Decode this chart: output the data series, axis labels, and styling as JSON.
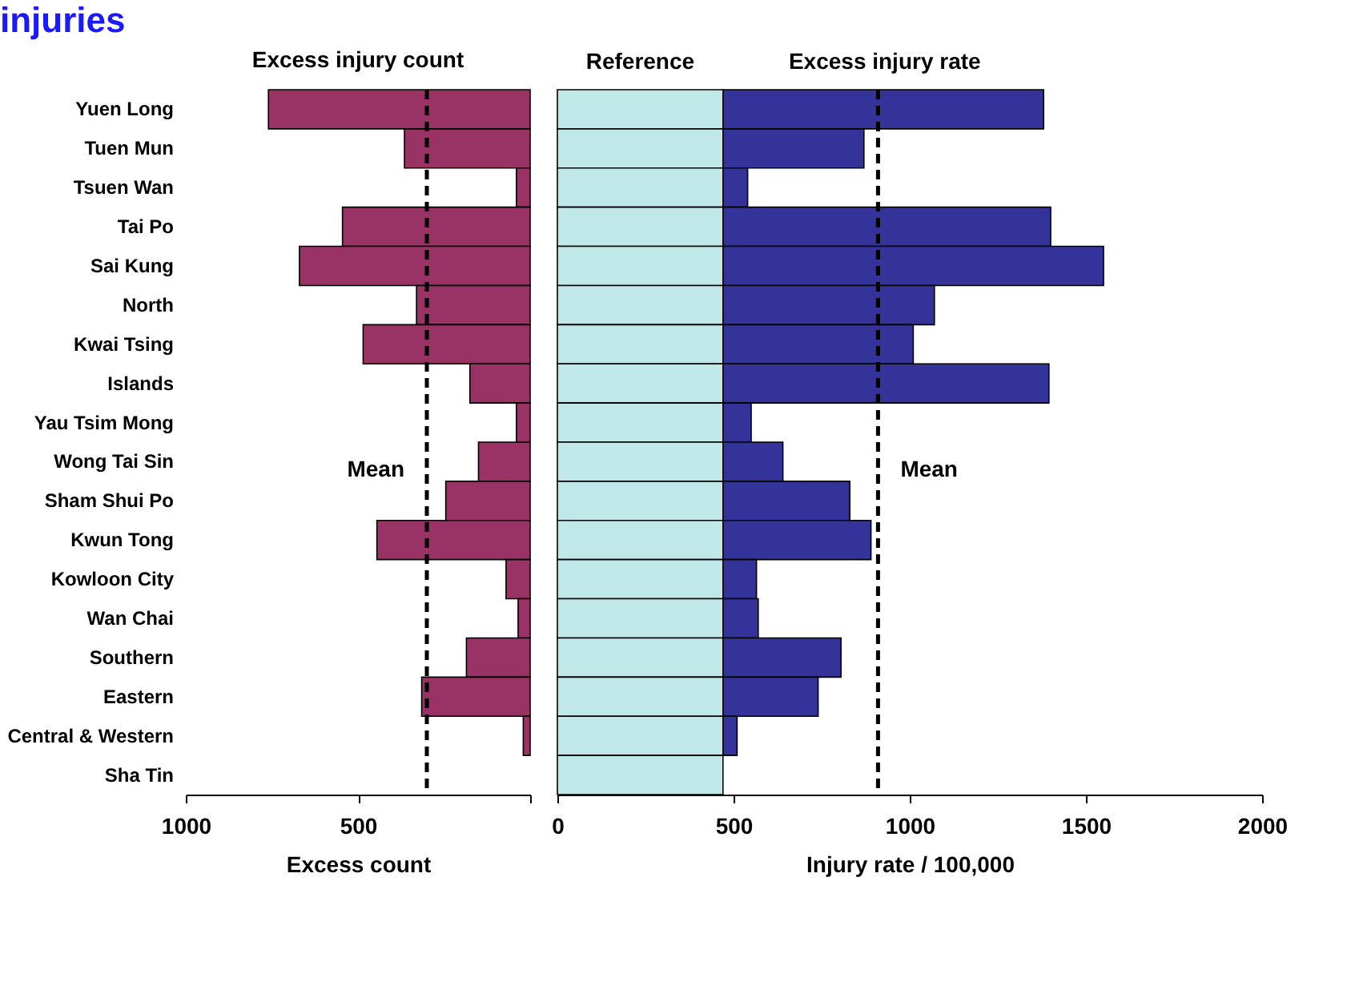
{
  "chart_data": [
    {
      "type": "bar",
      "orientation": "horizontal",
      "title": "Excess injury count",
      "xlabel": "Excess count",
      "annotations": [
        "injuries"
      ],
      "categories": [
        "Yuen Long",
        "Tuen Mun",
        "Tsuen Wan",
        "Tai Po",
        "Sai Kung",
        "North",
        "Kwai Tsing",
        "Islands",
        "Yau Tsim Mong",
        "Wong Tai Sin",
        "Sham Shui Po",
        "Kwun Tong",
        "Kowloon City",
        "Wan Chai",
        "Southern",
        "Eastern",
        "Central & Western",
        "Sha Tin"
      ],
      "values": [
        760,
        365,
        40,
        545,
        670,
        330,
        485,
        175,
        40,
        150,
        245,
        445,
        70,
        35,
        185,
        315,
        20,
        null
      ],
      "color": "#993366",
      "xlim": [
        1000,
        0
      ],
      "xticks": [
        1000,
        500,
        {
          "value": 0,
          "label": null
        }
      ],
      "ref_lines": [
        {
          "axis": "x",
          "value": 300,
          "label": "Mean",
          "line_style": "dashed"
        }
      ],
      "grid": false,
      "legend": false
    },
    {
      "type": "bar",
      "orientation": "horizontal",
      "stacked": true,
      "xlabel": "Injury rate / 100,000",
      "tick_labels": "x",
      "categories": [
        "Yuen Long",
        "Tuen Mun",
        "Tsuen Wan",
        "Tai Po",
        "Sai Kung",
        "North",
        "Kwai Tsing",
        "Islands",
        "Yau Tsim Mong",
        "Wong Tai Sin",
        "Sham Shui Po",
        "Kwun Tong",
        "Kowloon City",
        "Wan Chai",
        "Southern",
        "Eastern",
        "Central & Western",
        "Sha Tin"
      ],
      "series": [
        {
          "name": "Reference",
          "color": "#c0e8e8",
          "values": [
            470,
            470,
            470,
            470,
            470,
            470,
            470,
            470,
            470,
            470,
            470,
            470,
            470,
            470,
            470,
            470,
            470,
            470
          ]
        },
        {
          "name": "Excess injury rate",
          "color": "#333399",
          "values": [
            910,
            400,
            70,
            930,
            1080,
            600,
            540,
            925,
            80,
            170,
            360,
            420,
            95,
            100,
            335,
            270,
            40,
            null
          ]
        }
      ],
      "xlim": [
        0,
        2000
      ],
      "xticks": [
        0,
        500,
        1000,
        1500,
        2000
      ],
      "ref_lines": [
        {
          "axis": "x",
          "value": 910,
          "label": "Mean",
          "line_style": "dashed"
        }
      ],
      "grid": false,
      "legend": false
    }
  ]
}
